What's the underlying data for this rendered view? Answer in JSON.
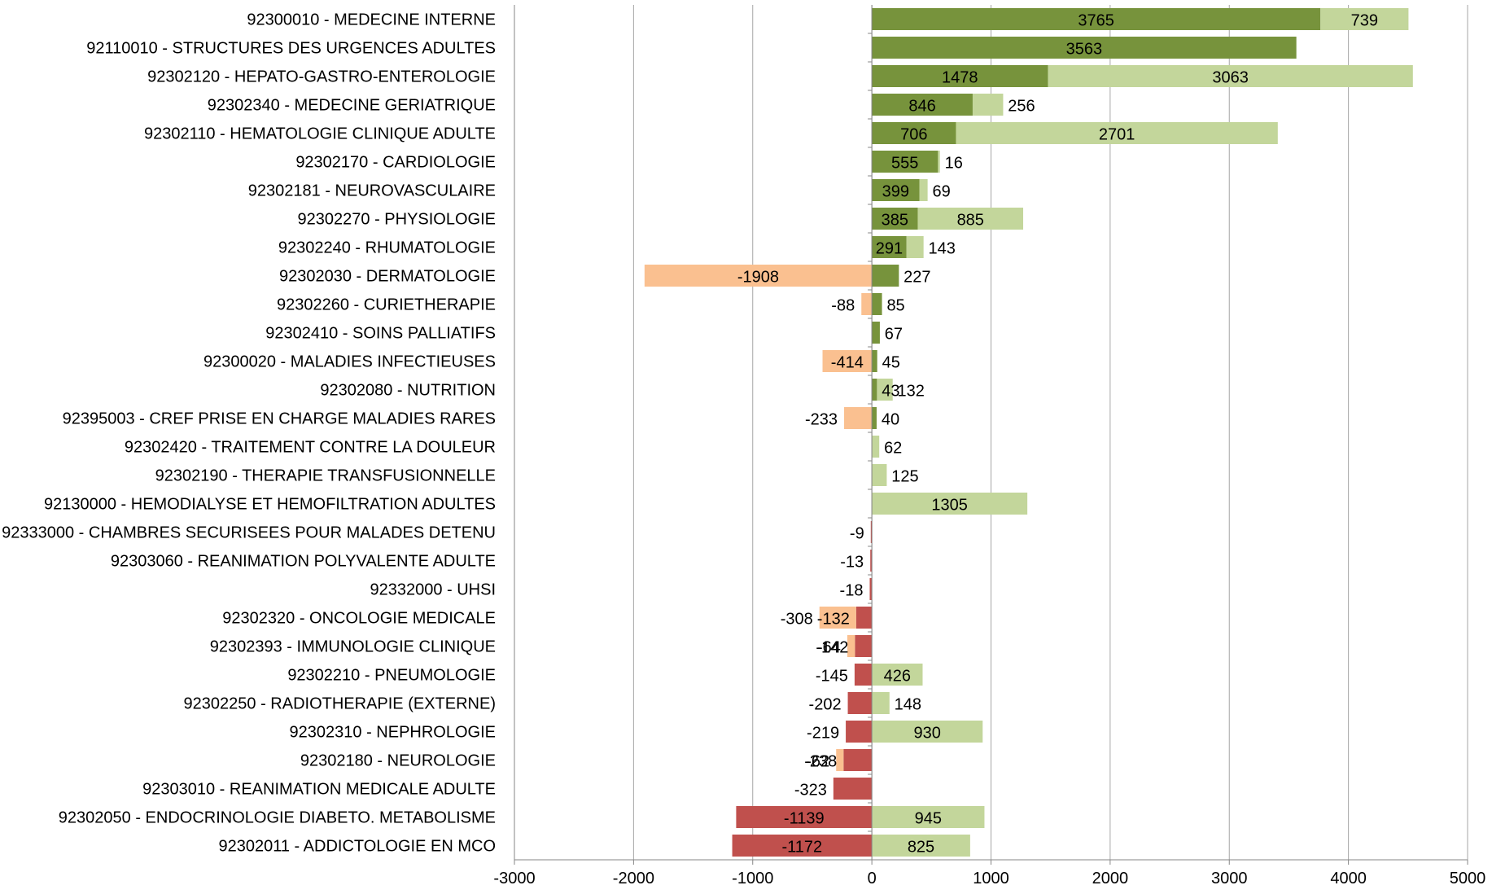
{
  "chart_data": {
    "type": "bar",
    "orientation": "horizontal",
    "stacked": "diverging",
    "categories": [
      "92300010 - MEDECINE INTERNE",
      "92110010 - STRUCTURES DES URGENCES ADULTES",
      "92302120 - HEPATO-GASTRO-ENTEROLOGIE",
      "92302340 - MEDECINE GERIATRIQUE",
      "92302110 - HEMATOLOGIE CLINIQUE ADULTE",
      "92302170 - CARDIOLOGIE",
      "92302181 - NEUROVASCULAIRE",
      "92302270 - PHYSIOLOGIE",
      "92302240 - RHUMATOLOGIE",
      "92302030 - DERMATOLOGIE",
      "92302260 - CURIETHERAPIE",
      "92302410 - SOINS PALLIATIFS",
      "92300020 - MALADIES INFECTIEUSES",
      "92302080 - NUTRITION",
      "92395003 - CREF PRISE EN CHARGE MALADIES RARES",
      "92302420 - TRAITEMENT CONTRE LA DOULEUR",
      "92302190 - THERAPIE TRANSFUSIONNELLE",
      "92130000 - HEMODIALYSE ET HEMOFILTRATION ADULTES",
      "92333000 - CHAMBRES SECURISEES POUR MALADES DETENU",
      "92303060 - REANIMATION POLYVALENTE ADULTE",
      "92332000 - UHSI",
      "92302320 - ONCOLOGIE MEDICALE",
      "92302393 - IMMUNOLOGIE CLINIQUE",
      "92302210 - PNEUMOLOGIE",
      "92302250 - RADIOTHERAPIE (EXTERNE)",
      "92302310 - NEPHROLOGIE",
      "92302180 - NEUROLOGIE",
      "92303010 - REANIMATION MEDICALE ADULTE",
      "92302050 - ENDOCRINOLOGIE DIABETO. METABOLISME",
      "92302011 - ADDICTOLOGIE EN MCO"
    ],
    "series": [
      {
        "color": "#77933c",
        "negative_color": "#c0504d",
        "values": [
          3765,
          3563,
          1478,
          846,
          706,
          555,
          399,
          385,
          291,
          227,
          85,
          67,
          45,
          43,
          40,
          0,
          0,
          0,
          -9,
          -13,
          -18,
          -132,
          -142,
          -145,
          -202,
          -219,
          -238,
          -323,
          -1139,
          -1172
        ]
      },
      {
        "color": "#c3d69b",
        "negative_color": "#fac090",
        "values": [
          739,
          0,
          3063,
          256,
          2701,
          16,
          69,
          885,
          143,
          -1908,
          -88,
          0,
          -414,
          132,
          -233,
          62,
          125,
          1305,
          0,
          0,
          0,
          -308,
          -64,
          426,
          148,
          930,
          -62,
          0,
          945,
          825
        ]
      }
    ],
    "xlim": [
      -3000,
      5000
    ],
    "xticks": [
      "-3000",
      "-2000",
      "-1000",
      "0",
      "1000",
      "2000",
      "3000",
      "4000",
      "5000"
    ],
    "grid": "vertical",
    "legend": "none"
  }
}
